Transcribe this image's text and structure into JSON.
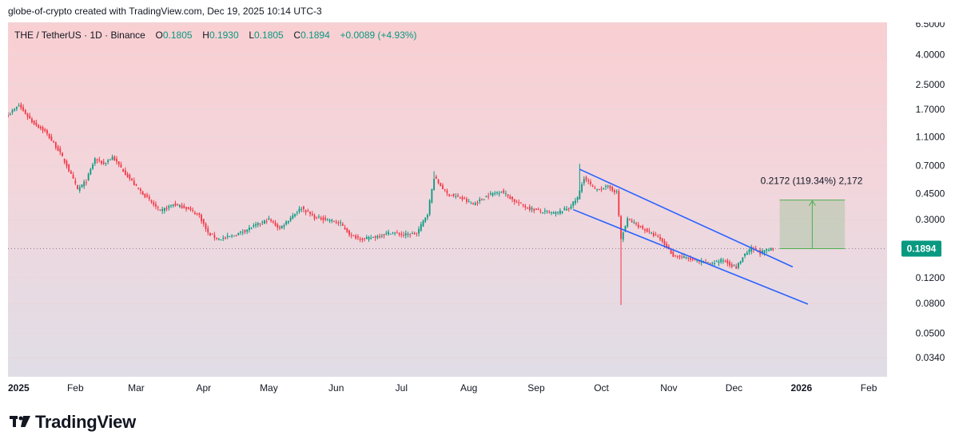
{
  "header": {
    "text": "globe-of-crypto created with TradingView.com, Dec 19, 2025 10:14 UTC-3"
  },
  "legend": {
    "symbol": "THE / TetherUS · 1D · Binance",
    "o_label": "O",
    "o": "0.1805",
    "h_label": "H",
    "h": "0.1930",
    "l_label": "L",
    "l": "0.1805",
    "c_label": "C",
    "c": "0.1894",
    "change": "+0.0089 (+4.93%)"
  },
  "price_badge": "0.1894",
  "measure_label": "0.2172 (119.34%) 2,172",
  "footer": {
    "brand": "TradingView"
  },
  "colors": {
    "up": "#089981",
    "down": "#f23645",
    "channel": "#2962ff",
    "badge": "#089981",
    "measure": "#4caf50"
  },
  "chart_data": {
    "type": "candlestick",
    "scale": "log",
    "y_ticks": [
      "6.5000",
      "4.0000",
      "2.5000",
      "1.7000",
      "1.1000",
      "0.7000",
      "0.4500",
      "0.3000",
      "0.1894",
      "0.1200",
      "0.0800",
      "0.0500",
      "0.0340"
    ],
    "x_ticks": [
      "2025",
      "Feb",
      "Mar",
      "Apr",
      "May",
      "Jun",
      "Jul",
      "Aug",
      "Sep",
      "Oct",
      "Nov",
      "Dec",
      "2026",
      "Feb"
    ],
    "current_price": 0.1894,
    "price_path": [
      [
        "2025-01-01",
        1.55
      ],
      [
        "2025-01-06",
        1.8
      ],
      [
        "2025-01-12",
        1.4
      ],
      [
        "2025-01-18",
        1.2
      ],
      [
        "2025-01-24",
        0.9
      ],
      [
        "2025-01-28",
        0.7
      ],
      [
        "2025-02-02",
        0.48
      ],
      [
        "2025-02-06",
        0.55
      ],
      [
        "2025-02-10",
        0.78
      ],
      [
        "2025-02-14",
        0.72
      ],
      [
        "2025-02-18",
        0.8
      ],
      [
        "2025-02-24",
        0.62
      ],
      [
        "2025-03-01",
        0.5
      ],
      [
        "2025-03-06",
        0.42
      ],
      [
        "2025-03-12",
        0.34
      ],
      [
        "2025-03-18",
        0.38
      ],
      [
        "2025-03-24",
        0.36
      ],
      [
        "2025-03-30",
        0.32
      ],
      [
        "2025-04-03",
        0.24
      ],
      [
        "2025-04-08",
        0.22
      ],
      [
        "2025-04-14",
        0.23
      ],
      [
        "2025-04-22",
        0.26
      ],
      [
        "2025-05-01",
        0.3
      ],
      [
        "2025-05-06",
        0.26
      ],
      [
        "2025-05-12",
        0.32
      ],
      [
        "2025-05-16",
        0.36
      ],
      [
        "2025-05-22",
        0.31
      ],
      [
        "2025-05-28",
        0.3
      ],
      [
        "2025-06-03",
        0.28
      ],
      [
        "2025-06-08",
        0.23
      ],
      [
        "2025-06-14",
        0.22
      ],
      [
        "2025-06-20",
        0.23
      ],
      [
        "2025-06-26",
        0.245
      ],
      [
        "2025-07-02",
        0.235
      ],
      [
        "2025-07-08",
        0.24
      ],
      [
        "2025-07-13",
        0.33
      ],
      [
        "2025-07-16",
        0.58
      ],
      [
        "2025-07-22",
        0.45
      ],
      [
        "2025-07-28",
        0.42
      ],
      [
        "2025-08-03",
        0.38
      ],
      [
        "2025-08-10",
        0.44
      ],
      [
        "2025-08-16",
        0.47
      ],
      [
        "2025-08-22",
        0.4
      ],
      [
        "2025-08-28",
        0.36
      ],
      [
        "2025-09-03",
        0.34
      ],
      [
        "2025-09-10",
        0.33
      ],
      [
        "2025-09-16",
        0.36
      ],
      [
        "2025-09-20",
        0.42
      ],
      [
        "2025-09-23",
        0.58
      ],
      [
        "2025-09-28",
        0.48
      ],
      [
        "2025-10-04",
        0.5
      ],
      [
        "2025-10-08",
        0.46
      ],
      [
        "2025-10-10",
        0.22
      ],
      [
        "2025-10-13",
        0.3
      ],
      [
        "2025-10-20",
        0.26
      ],
      [
        "2025-10-28",
        0.22
      ],
      [
        "2025-11-03",
        0.17
      ],
      [
        "2025-11-08",
        0.165
      ],
      [
        "2025-11-14",
        0.155
      ],
      [
        "2025-11-20",
        0.15
      ],
      [
        "2025-11-26",
        0.158
      ],
      [
        "2025-12-02",
        0.14
      ],
      [
        "2025-12-05",
        0.165
      ],
      [
        "2025-12-09",
        0.19
      ],
      [
        "2025-12-13",
        0.178
      ],
      [
        "2025-12-19",
        0.1894
      ]
    ],
    "channel": {
      "upper": [
        [
          "2025-09-21",
          0.66
        ],
        [
          "2025-12-28",
          0.142
        ]
      ],
      "lower": [
        [
          "2025-09-18",
          0.35
        ],
        [
          "2026-01-04",
          0.079
        ]
      ]
    },
    "measure": {
      "from_price": 0.1894,
      "to_price": 0.4066,
      "delta": 0.2172,
      "pct": 119.34,
      "bars": "2,172"
    }
  }
}
